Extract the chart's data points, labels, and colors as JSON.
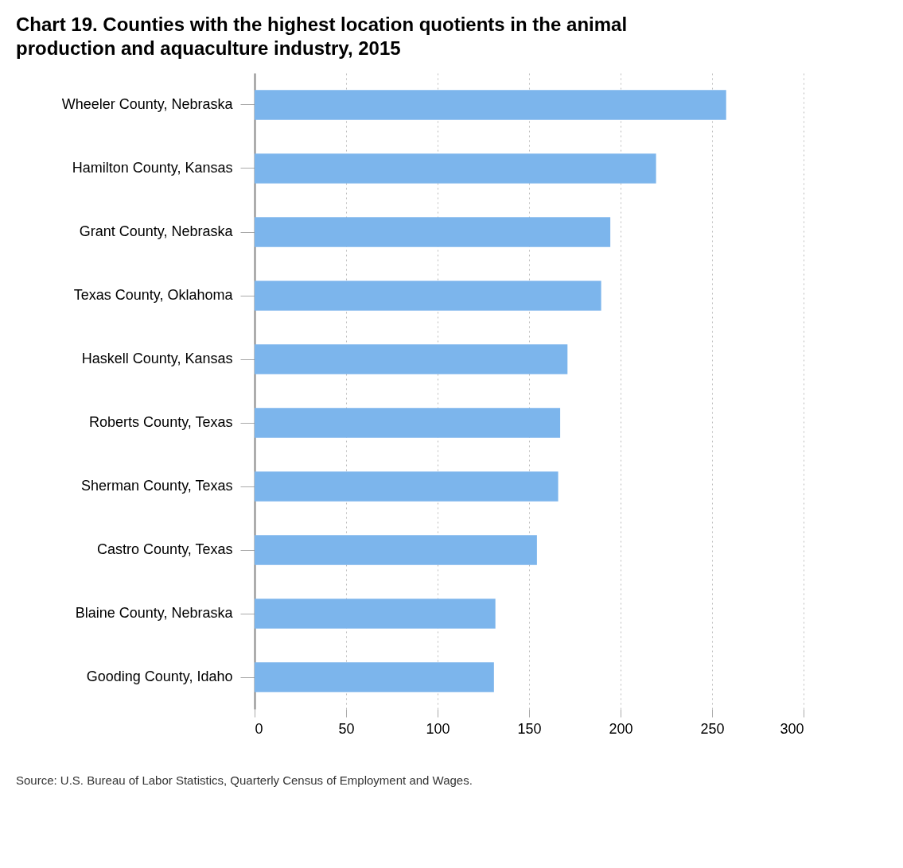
{
  "chart_data": {
    "type": "bar",
    "orientation": "horizontal",
    "title": "Chart 19. Counties with the highest location quotients in the animal production and aquaculture industry, 2015",
    "categories": [
      "Wheeler County, Nebraska",
      "Hamilton County, Kansas",
      "Grant County, Nebraska",
      "Texas County, Oklahoma",
      "Haskell County, Kansas",
      "Roberts County, Texas",
      "Sherman County, Texas",
      "Castro County, Texas",
      "Blaine County, Nebraska",
      "Gooding County, Idaho"
    ],
    "values": [
      257.7,
      219.4,
      194.4,
      189.4,
      171,
      167,
      165.9,
      154.3,
      131.6,
      130.8
    ],
    "color": "#7cb5ec",
    "xlim": [
      0,
      300
    ],
    "xticks": [
      0,
      50,
      100,
      150,
      200,
      250,
      300
    ],
    "grid": "x",
    "annotations": [
      "Source: U.S. Bureau of Labor Statistics, Quarterly Census of Employment and Wages."
    ]
  }
}
